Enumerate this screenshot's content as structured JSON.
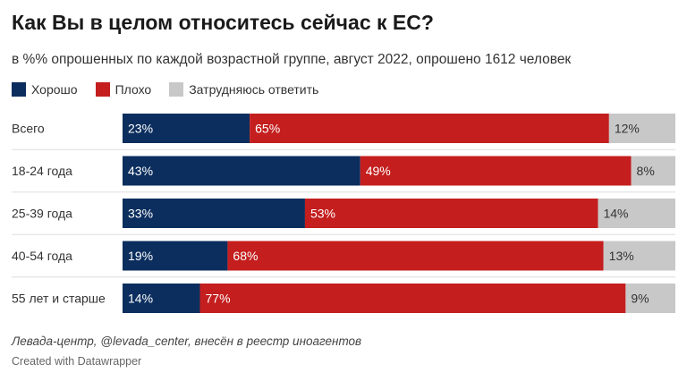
{
  "title": "Как Вы в целом относитесь сейчас к ЕС?",
  "subtitle": "в %% опрошенных по каждой возрастной группе, август 2022, опрошено 1612 человек",
  "legend": [
    {
      "label": "Хорошо",
      "color": "#0b2e5e"
    },
    {
      "label": "Плохо",
      "color": "#c41e1e"
    },
    {
      "label": "Затрудняюсь ответить",
      "color": "#c8c8c8"
    }
  ],
  "source_note": "Левада-центр, @levada_center, внесён в реестр иноагентов",
  "credit": "Created with Datawrapper",
  "chart_data": {
    "type": "bar",
    "stacked": true,
    "orientation": "horizontal",
    "unit": "%",
    "categories": [
      "Всего",
      "18-24 года",
      "25-39 года",
      "40-54 года",
      "55 лет и старше"
    ],
    "series": [
      {
        "name": "Хорошо",
        "color": "#0b2e5e",
        "label_color": "#ffffff",
        "values": [
          23,
          43,
          33,
          19,
          14
        ]
      },
      {
        "name": "Плохо",
        "color": "#c41e1e",
        "label_color": "#ffffff",
        "values": [
          65,
          49,
          53,
          68,
          77
        ]
      },
      {
        "name": "Затрудняюсь ответить",
        "color": "#c8c8c8",
        "label_color": "#333333",
        "values": [
          12,
          8,
          14,
          13,
          9
        ]
      }
    ],
    "legend_position": "top-left",
    "grid": false
  }
}
